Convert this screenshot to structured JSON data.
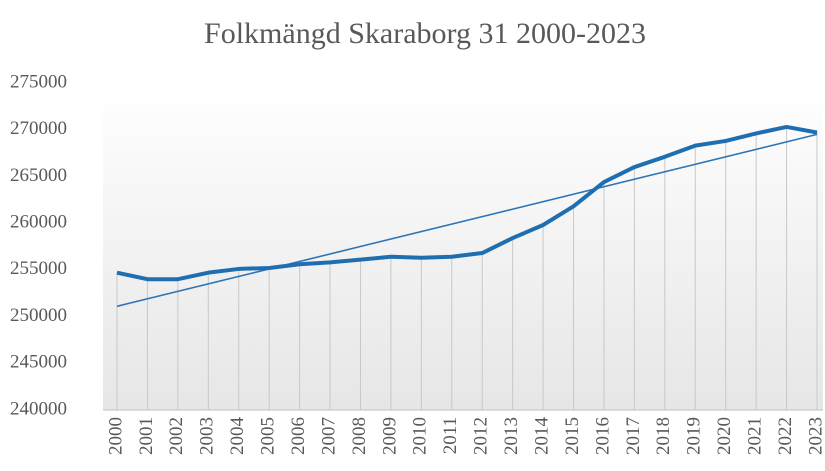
{
  "chart_data": {
    "type": "line",
    "title": "Folkmängd Skaraborg 31 2000-2023",
    "categories": [
      "2000",
      "2001",
      "2002",
      "2003",
      "2004",
      "2005",
      "2006",
      "2007",
      "2008",
      "2009",
      "2010",
      "2011",
      "2012",
      "2013",
      "2014",
      "2015",
      "2016",
      "2017",
      "2018",
      "2019",
      "2020",
      "2021",
      "2022",
      "2023"
    ],
    "series": [
      {
        "name": "Folkmängd",
        "color": "#1f6fb0",
        "values": [
          254700,
          254000,
          254000,
          254700,
          255100,
          255200,
          255600,
          255800,
          256100,
          256400,
          256300,
          256400,
          256800,
          258400,
          259800,
          261800,
          264400,
          266000,
          267100,
          268300,
          268800,
          269600,
          270300,
          269700
        ]
      }
    ],
    "trendline": {
      "color": "#2e75b6",
      "start": 251100,
      "end": 269500
    },
    "ylim": [
      240000,
      275000
    ],
    "yticks": [
      240000,
      245000,
      250000,
      255000,
      260000,
      265000,
      270000,
      275000
    ],
    "drop_lines": true
  }
}
